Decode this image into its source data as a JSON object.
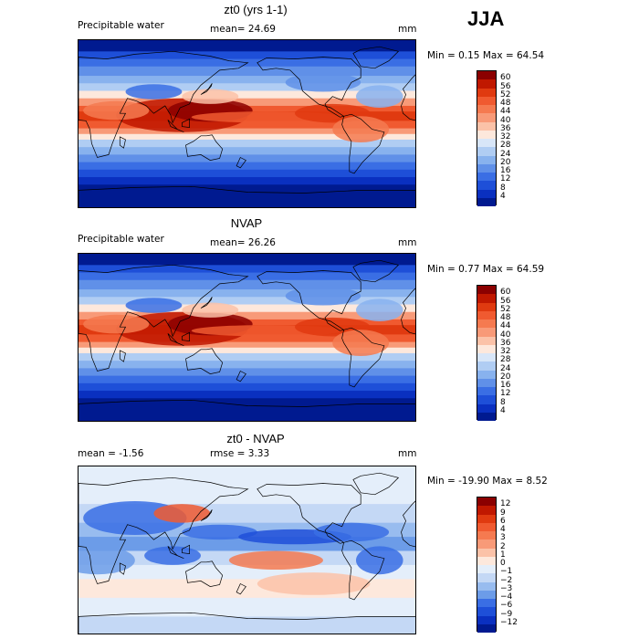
{
  "season": "JJA",
  "panels": [
    {
      "title": "zt0 (yrs 1-1)",
      "left_label": "Precipitable water",
      "stat": "mean=   24.69",
      "units": "mm",
      "minmax": "Min =    0.15 Max =   64.54",
      "colorbar_labels": [
        "60",
        "56",
        "52",
        "48",
        "44",
        "40",
        "36",
        "32",
        "28",
        "24",
        "20",
        "16",
        "12",
        "8",
        "4"
      ],
      "colors": [
        "#8b0000",
        "#c01800",
        "#e03a10",
        "#f05a30",
        "#f57a50",
        "#f89a78",
        "#fbc2a8",
        "#fde8dc",
        "#d8e6f8",
        "#b0cdf3",
        "#88b2ee",
        "#6090e8",
        "#3a6ee4",
        "#1e4fd8",
        "#0a30c0",
        "#001a90"
      ],
      "style": "model"
    },
    {
      "title": "NVAP",
      "left_label": "Precipitable water",
      "stat": "mean=   26.26",
      "units": "mm",
      "minmax": "Min =    0.77 Max =   64.59",
      "colorbar_labels": [
        "60",
        "56",
        "52",
        "48",
        "44",
        "40",
        "36",
        "32",
        "28",
        "24",
        "20",
        "16",
        "12",
        "8",
        "4"
      ],
      "colors": [
        "#8b0000",
        "#c01800",
        "#e03a10",
        "#f05a30",
        "#f57a50",
        "#f89a78",
        "#fbc2a8",
        "#fde8dc",
        "#d8e6f8",
        "#b0cdf3",
        "#88b2ee",
        "#6090e8",
        "#3a6ee4",
        "#1e4fd8",
        "#0a30c0",
        "#001a90"
      ],
      "style": "obs"
    },
    {
      "title": "zt0 - NVAP",
      "left_label": "mean =   -1.56",
      "stat": "rmse =    3.33",
      "units": "mm",
      "minmax": "Min = -19.90 Max =    8.52",
      "colorbar_labels": [
        "12",
        "9",
        "6",
        "4",
        "3",
        "2",
        "1",
        "0",
        "−1",
        "−2",
        "−3",
        "−4",
        "−6",
        "−9",
        "−12"
      ],
      "colors": [
        "#8b0000",
        "#c01800",
        "#e03a10",
        "#f05a30",
        "#f57a50",
        "#f89a78",
        "#fbc2a8",
        "#fde8dc",
        "#e4eefa",
        "#c4d8f5",
        "#98bcef",
        "#6c9ce8",
        "#3a6ee4",
        "#1e4fd8",
        "#0a30c0",
        "#001a90"
      ],
      "style": "diff"
    }
  ]
}
